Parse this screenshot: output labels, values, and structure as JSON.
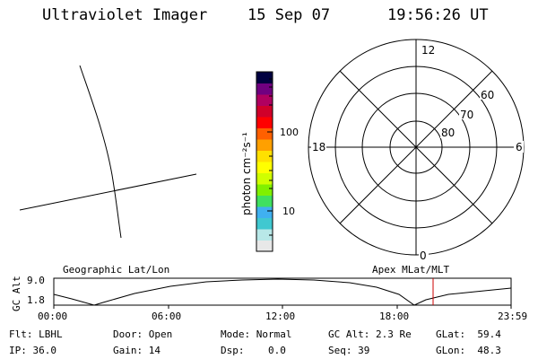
{
  "header": {
    "instrument": "Ultraviolet Imager",
    "date": "15 Sep 07",
    "time": "19:56:26 UT"
  },
  "colorbar": {
    "label": "photon cm⁻²s⁻¹",
    "ticks": [
      "100",
      "10"
    ],
    "colors": [
      "#e8e8e8",
      "#b8e8e8",
      "#40c8d0",
      "#40b0f0",
      "#40e060",
      "#80f000",
      "#d0ff00",
      "#ffff00",
      "#ffe000",
      "#ffa000",
      "#ff6000",
      "#ff0000",
      "#d0002a",
      "#b00060",
      "#700080",
      "#000040"
    ]
  },
  "polar_plot": {
    "mlt_labels": [
      "12",
      "18",
      "6",
      "0"
    ],
    "lat_labels": [
      "60",
      "70",
      "80"
    ]
  },
  "timeline": {
    "axis_label": "GC Alt",
    "y_ticks": [
      "9.0",
      "1.8"
    ],
    "left_title": "Geographic Lat/Lon",
    "right_title": "Apex MLat/MLT",
    "x_ticks": [
      "00:00",
      "06:00",
      "12:00",
      "18:00",
      "23:59"
    ],
    "marker_color": "#cc0000"
  },
  "status": {
    "flt": "Flt: LBHL",
    "ip": "IP: 36.0",
    "door": "Door: Open",
    "gain": "Gain: 14",
    "mode": "Mode: Normal",
    "dsp": "Dsp:    0.0",
    "gc_alt": "GC Alt: 2.3 Re",
    "seq": "Seq: 39",
    "glat": "GLat:  59.4",
    "glon": "GLon:  48.3"
  }
}
